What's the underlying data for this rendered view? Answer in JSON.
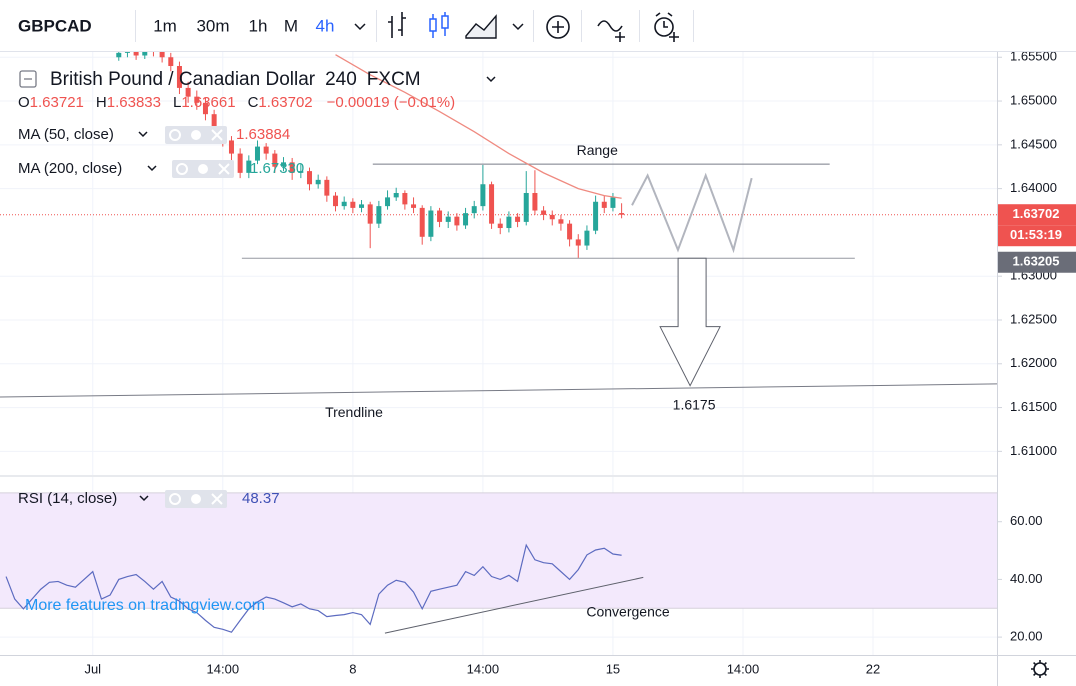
{
  "chart_data": {
    "type": "candlestick",
    "symbol": "GBPCAD",
    "intervals": [
      "1m",
      "30m",
      "1h",
      "M",
      "4h"
    ],
    "active_interval": 4,
    "title": "British Pound / Canadian Dollar",
    "resolution": "240",
    "source": "FXCM",
    "legend": {
      "labels": [
        "O",
        "H",
        "L",
        "C"
      ],
      "open": 1.63721,
      "high": 1.63833,
      "low": 1.63661,
      "close": 1.63702,
      "change": "−0.00019 (−0.01%)"
    },
    "up_color": "#26a69a",
    "down_color": "#ef5350",
    "candles": {
      "x": [
        3,
        4,
        5,
        6,
        7,
        8,
        9,
        10,
        11,
        12,
        13,
        14,
        15,
        16,
        17,
        18,
        19,
        20,
        21,
        22,
        23,
        24,
        25,
        26,
        27,
        28,
        29,
        30,
        31,
        32,
        33,
        34,
        35,
        36,
        37,
        38,
        39,
        40,
        41,
        42,
        43,
        44,
        45,
        46,
        47,
        48,
        49,
        50,
        51,
        52,
        53,
        54,
        55,
        56,
        57,
        58,
        59,
        60,
        61
      ],
      "open": [
        1.655,
        1.6555,
        1.6558,
        1.6552,
        1.656,
        1.6556,
        1.655,
        1.654,
        1.6515,
        1.6505,
        1.6498,
        1.6485,
        1.6462,
        1.6455,
        1.644,
        1.6418,
        1.6432,
        1.6448,
        1.644,
        1.6425,
        1.643,
        1.6418,
        1.642,
        1.6405,
        1.641,
        1.6392,
        1.638,
        1.6385,
        1.6378,
        1.6382,
        1.636,
        1.638,
        1.639,
        1.6395,
        1.6382,
        1.6378,
        1.6345,
        1.6375,
        1.6362,
        1.6368,
        1.6358,
        1.6372,
        1.638,
        1.6405,
        1.636,
        1.6355,
        1.6368,
        1.6362,
        1.6395,
        1.6375,
        1.637,
        1.6365,
        1.636,
        1.6342,
        1.6335,
        1.6352,
        1.6385,
        1.6378,
        1.63721
      ],
      "high": [
        1.6561,
        1.6564,
        1.6563,
        1.6566,
        1.6565,
        1.6561,
        1.6555,
        1.6545,
        1.6522,
        1.6512,
        1.6504,
        1.649,
        1.647,
        1.646,
        1.6446,
        1.6438,
        1.6455,
        1.6452,
        1.6444,
        1.6436,
        1.6435,
        1.6428,
        1.6424,
        1.6416,
        1.6414,
        1.6396,
        1.6391,
        1.6389,
        1.6387,
        1.6385,
        1.6386,
        1.6398,
        1.6401,
        1.6398,
        1.639,
        1.6381,
        1.638,
        1.6378,
        1.6374,
        1.6372,
        1.6378,
        1.6386,
        1.6427,
        1.6408,
        1.6366,
        1.6374,
        1.6372,
        1.642,
        1.6421,
        1.638,
        1.6375,
        1.637,
        1.6364,
        1.6348,
        1.6358,
        1.6392,
        1.6392,
        1.6395,
        1.63833
      ],
      "low": [
        1.6546,
        1.655,
        1.6547,
        1.6548,
        1.6551,
        1.6544,
        1.6534,
        1.6508,
        1.6498,
        1.649,
        1.6478,
        1.6455,
        1.6448,
        1.6432,
        1.6412,
        1.6412,
        1.6428,
        1.6433,
        1.6418,
        1.642,
        1.641,
        1.6412,
        1.6398,
        1.64,
        1.6385,
        1.6374,
        1.6376,
        1.6372,
        1.6373,
        1.6332,
        1.6355,
        1.6376,
        1.6386,
        1.6376,
        1.6372,
        1.6336,
        1.634,
        1.6356,
        1.6355,
        1.6352,
        1.6354,
        1.6366,
        1.6375,
        1.6354,
        1.6348,
        1.635,
        1.6356,
        1.6358,
        1.637,
        1.6364,
        1.6358,
        1.6352,
        1.6334,
        1.6321,
        1.633,
        1.6348,
        1.6372,
        1.6374,
        1.63661
      ],
      "close": [
        1.6555,
        1.6558,
        1.6552,
        1.656,
        1.6556,
        1.655,
        1.654,
        1.6515,
        1.6505,
        1.6498,
        1.6485,
        1.6462,
        1.6455,
        1.644,
        1.6418,
        1.6432,
        1.6448,
        1.644,
        1.6425,
        1.643,
        1.6418,
        1.642,
        1.6405,
        1.641,
        1.6392,
        1.638,
        1.6385,
        1.6378,
        1.6382,
        1.636,
        1.638,
        1.639,
        1.6395,
        1.6382,
        1.6378,
        1.6345,
        1.6375,
        1.6362,
        1.6368,
        1.6358,
        1.6372,
        1.638,
        1.6405,
        1.636,
        1.6355,
        1.6368,
        1.6362,
        1.6395,
        1.6375,
        1.637,
        1.6365,
        1.636,
        1.6342,
        1.6335,
        1.6352,
        1.6385,
        1.6378,
        1.639,
        1.63702
      ]
    },
    "indicators": [
      {
        "name": "MA (50, close)",
        "value_label": 1.63884,
        "value_color": "#ef5350",
        "color": "#ef8a80",
        "x": [
          28,
          32,
          36,
          40,
          44,
          48,
          52,
          56,
          59,
          61
        ],
        "values": [
          1.6553,
          1.653,
          1.651,
          1.6488,
          1.6465,
          1.644,
          1.6418,
          1.64,
          1.6392,
          1.6389
        ]
      },
      {
        "name": "MA (200, close)",
        "value_label": "1.67330",
        "value_color": "#26a69a"
      }
    ],
    "xlim": [
      -10.7,
      104.3
    ],
    "xticks": [
      {
        "value": 0,
        "label": "Jul"
      },
      {
        "value": 15,
        "label": "14:00"
      },
      {
        "value": 30,
        "label": "8"
      },
      {
        "value": 45,
        "label": "14:00"
      },
      {
        "value": 60,
        "label": "15"
      },
      {
        "value": 75,
        "label": "14:00"
      },
      {
        "value": 90,
        "label": "22"
      }
    ],
    "ylim": [
      1.6073,
      1.6556
    ],
    "yticks": [
      {
        "value": 1.655,
        "label": "1.65500"
      },
      {
        "value": 1.65,
        "label": "1.65000"
      },
      {
        "value": 1.645,
        "label": "1.64500"
      },
      {
        "value": 1.64,
        "label": "1.64000"
      },
      {
        "value": 1.63,
        "label": "1.63000"
      },
      {
        "value": 1.625,
        "label": "1.62500"
      },
      {
        "value": 1.62,
        "label": "1.62000"
      },
      {
        "value": 1.615,
        "label": "1.61500"
      },
      {
        "value": 1.61,
        "label": "1.61000"
      }
    ],
    "grid": true,
    "last_price": 1.63702,
    "countdown": "01:53:19",
    "support": {
      "value": 1.63205,
      "x": [
        17.2,
        87.9
      ]
    },
    "range": {
      "text": "Range",
      "value": 1.6428,
      "x": [
        32.3,
        85
      ]
    },
    "trendline": {
      "text": "Trendline",
      "x": [
        -10.7,
        104.3
      ],
      "values": [
        1.6162,
        1.6177
      ]
    },
    "target": {
      "value": 1.6175,
      "x": 68.9
    },
    "projection": {
      "x": [
        62.2,
        64.0,
        67.5,
        70.7,
        73.9,
        76.0
      ],
      "values": [
        1.6381,
        1.6415,
        1.633,
        1.6415,
        1.633,
        1.6412
      ]
    },
    "rsi": {
      "name": "RSI (14, close)",
      "value_label": 48.37,
      "color": "#5c6bc0",
      "ylim": [
        13.8,
        75.5
      ],
      "yticks": [
        {
          "value": 60,
          "label": "60.00"
        },
        {
          "value": 40,
          "label": "40.00"
        },
        {
          "value": 20,
          "label": "20.00"
        }
      ],
      "band": [
        30,
        70
      ],
      "x": [
        -10,
        -9,
        -8,
        -7,
        -6,
        -5,
        -4,
        -3,
        -2,
        -1,
        0,
        1,
        2,
        3,
        4,
        5,
        6,
        7,
        8,
        9,
        10,
        11,
        12,
        13,
        14,
        15,
        16,
        17,
        18,
        19,
        20,
        21,
        22,
        23,
        24,
        25,
        26,
        27,
        28,
        29,
        30,
        31,
        32,
        33,
        34,
        35,
        36,
        37,
        38,
        39,
        40,
        41,
        42,
        43,
        44,
        45,
        46,
        47,
        48,
        49,
        50,
        51,
        52,
        53,
        54,
        55,
        56,
        57,
        58,
        59,
        60,
        61
      ],
      "values": [
        41.0,
        33.2,
        29.8,
        33.2,
        36.6,
        39.0,
        39.3,
        38.0,
        37.3,
        40.0,
        42.7,
        33.2,
        34.6,
        40.0,
        41.0,
        41.7,
        39.3,
        36.6,
        39.3,
        33.9,
        32.5,
        29.8,
        28.5,
        25.8,
        23.4,
        22.7,
        21.7,
        25.8,
        29.8,
        32.2,
        33.9,
        33.2,
        31.9,
        30.5,
        31.5,
        29.8,
        29.2,
        27.1,
        27.5,
        27.8,
        28.5,
        27.8,
        24.4,
        34.9,
        38.0,
        39.7,
        39.0,
        35.6,
        29.8,
        35.9,
        36.6,
        37.3,
        38.0,
        42.7,
        41.4,
        44.4,
        41.0,
        40.0,
        41.4,
        39.3,
        51.9,
        46.8,
        45.8,
        45.4,
        42.7,
        40.0,
        43.4,
        48.5,
        50.2,
        50.8,
        48.8,
        48.37
      ],
      "convergence": {
        "text": "Convergence",
        "x": [
          33.7,
          63.5
        ],
        "values": [
          21.4,
          40.7
        ]
      }
    },
    "watermark": "More features on tradingview.com"
  }
}
